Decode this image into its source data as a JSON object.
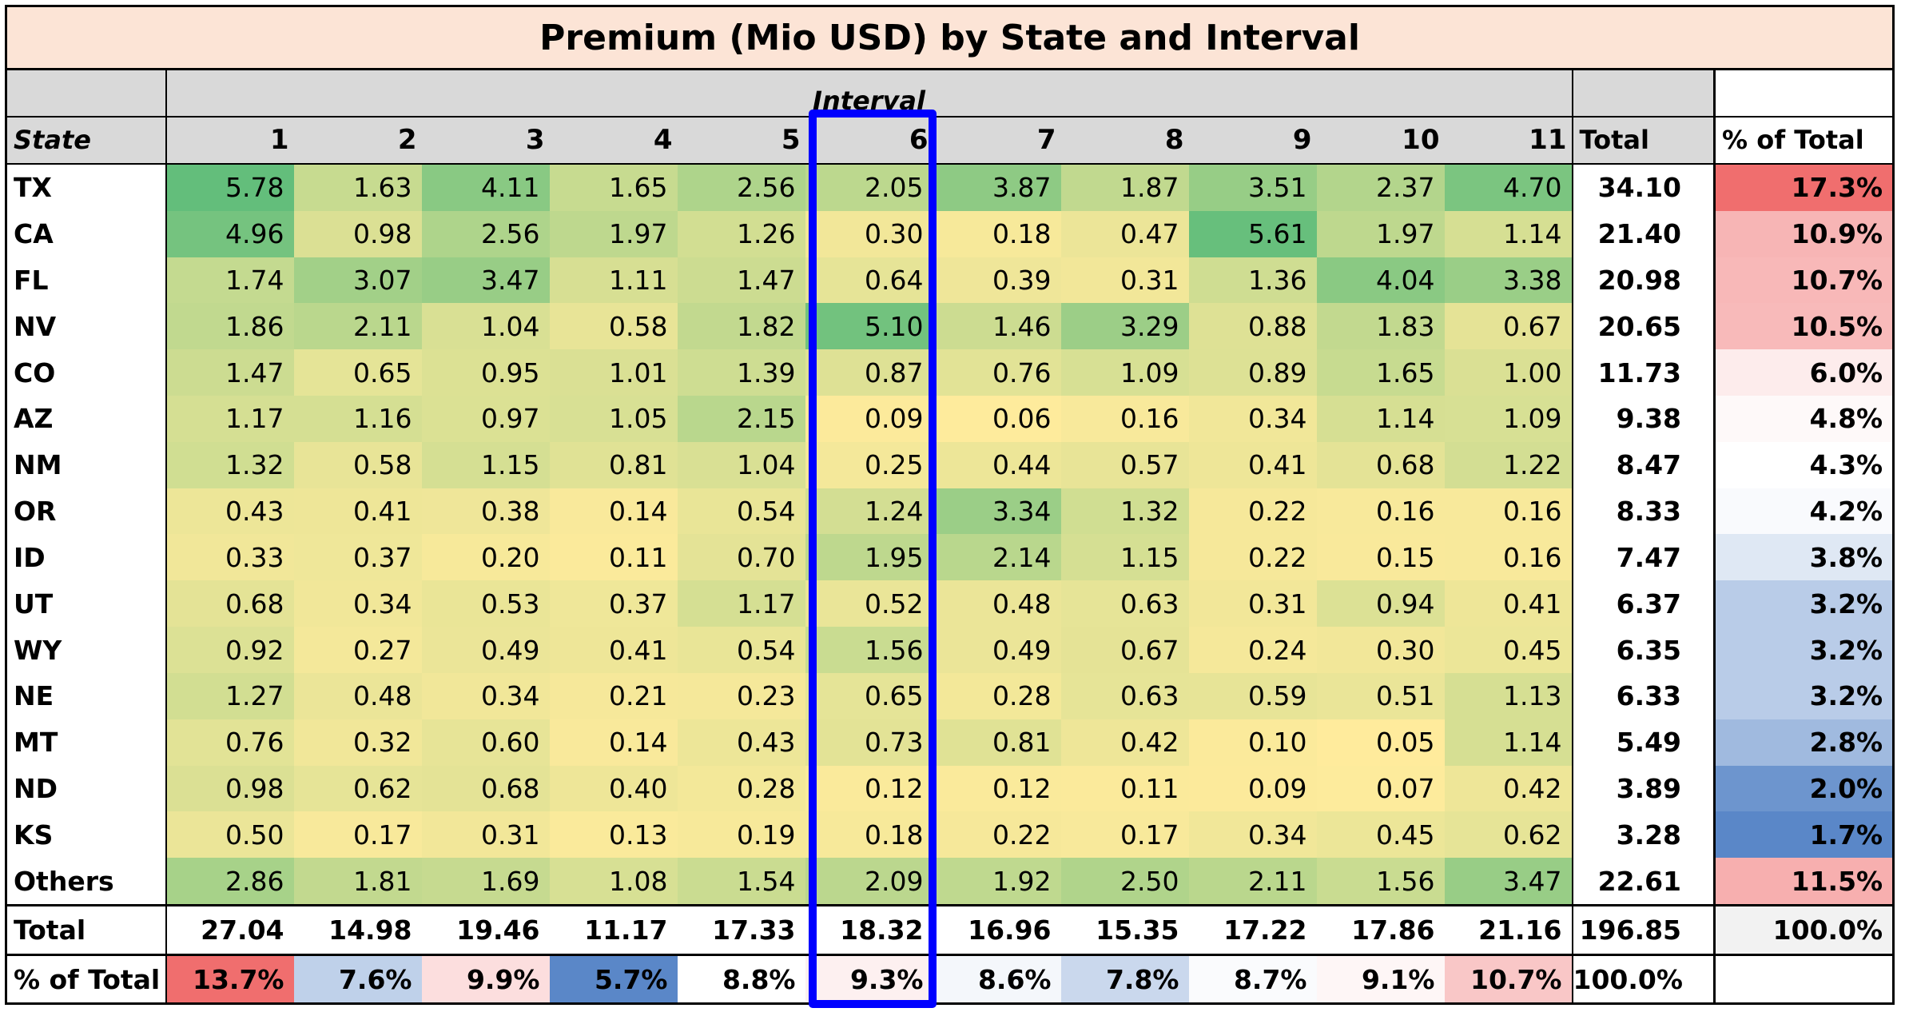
{
  "title": "Premium (Mio USD) by State and Interval",
  "interval_label": "Interval",
  "state_label": "State",
  "total_label": "Total",
  "pct_label": "% of Total",
  "highlight_color": "#0000ff",
  "chart_data": {
    "type": "table",
    "title": "Premium (Mio USD) by State and Interval",
    "columns": [
      "1",
      "2",
      "3",
      "4",
      "5",
      "6",
      "7",
      "8",
      "9",
      "10",
      "11"
    ],
    "highlighted_column": "6",
    "rows": [
      {
        "state": "TX",
        "values": [
          "5.78",
          "1.63",
          "4.11",
          "1.65",
          "2.56",
          "2.05",
          "3.87",
          "1.87",
          "3.51",
          "2.37",
          "4.70"
        ],
        "total": "34.10",
        "pct": "17.3%"
      },
      {
        "state": "CA",
        "values": [
          "4.96",
          "0.98",
          "2.56",
          "1.97",
          "1.26",
          "0.30",
          "0.18",
          "0.47",
          "5.61",
          "1.97",
          "1.14"
        ],
        "total": "21.40",
        "pct": "10.9%"
      },
      {
        "state": "FL",
        "values": [
          "1.74",
          "3.07",
          "3.47",
          "1.11",
          "1.47",
          "0.64",
          "0.39",
          "0.31",
          "1.36",
          "4.04",
          "3.38"
        ],
        "total": "20.98",
        "pct": "10.7%"
      },
      {
        "state": "NV",
        "values": [
          "1.86",
          "2.11",
          "1.04",
          "0.58",
          "1.82",
          "5.10",
          "1.46",
          "3.29",
          "0.88",
          "1.83",
          "0.67"
        ],
        "total": "20.65",
        "pct": "10.5%"
      },
      {
        "state": "CO",
        "values": [
          "1.47",
          "0.65",
          "0.95",
          "1.01",
          "1.39",
          "0.87",
          "0.76",
          "1.09",
          "0.89",
          "1.65",
          "1.00"
        ],
        "total": "11.73",
        "pct": "6.0%"
      },
      {
        "state": "AZ",
        "values": [
          "1.17",
          "1.16",
          "0.97",
          "1.05",
          "2.15",
          "0.09",
          "0.06",
          "0.16",
          "0.34",
          "1.14",
          "1.09"
        ],
        "total": "9.38",
        "pct": "4.8%"
      },
      {
        "state": "NM",
        "values": [
          "1.32",
          "0.58",
          "1.15",
          "0.81",
          "1.04",
          "0.25",
          "0.44",
          "0.57",
          "0.41",
          "0.68",
          "1.22"
        ],
        "total": "8.47",
        "pct": "4.3%"
      },
      {
        "state": "OR",
        "values": [
          "0.43",
          "0.41",
          "0.38",
          "0.14",
          "0.54",
          "1.24",
          "3.34",
          "1.32",
          "0.22",
          "0.16",
          "0.16"
        ],
        "total": "8.33",
        "pct": "4.2%"
      },
      {
        "state": "ID",
        "values": [
          "0.33",
          "0.37",
          "0.20",
          "0.11",
          "0.70",
          "1.95",
          "2.14",
          "1.15",
          "0.22",
          "0.15",
          "0.16"
        ],
        "total": "7.47",
        "pct": "3.8%"
      },
      {
        "state": "UT",
        "values": [
          "0.68",
          "0.34",
          "0.53",
          "0.37",
          "1.17",
          "0.52",
          "0.48",
          "0.63",
          "0.31",
          "0.94",
          "0.41"
        ],
        "total": "6.37",
        "pct": "3.2%"
      },
      {
        "state": "WY",
        "values": [
          "0.92",
          "0.27",
          "0.49",
          "0.41",
          "0.54",
          "1.56",
          "0.49",
          "0.67",
          "0.24",
          "0.30",
          "0.45"
        ],
        "total": "6.35",
        "pct": "3.2%"
      },
      {
        "state": "NE",
        "values": [
          "1.27",
          "0.48",
          "0.34",
          "0.21",
          "0.23",
          "0.65",
          "0.28",
          "0.63",
          "0.59",
          "0.51",
          "1.13"
        ],
        "total": "6.33",
        "pct": "3.2%"
      },
      {
        "state": "MT",
        "values": [
          "0.76",
          "0.32",
          "0.60",
          "0.14",
          "0.43",
          "0.73",
          "0.81",
          "0.42",
          "0.10",
          "0.05",
          "1.14"
        ],
        "total": "5.49",
        "pct": "2.8%"
      },
      {
        "state": "ND",
        "values": [
          "0.98",
          "0.62",
          "0.68",
          "0.40",
          "0.28",
          "0.12",
          "0.12",
          "0.11",
          "0.09",
          "0.07",
          "0.42"
        ],
        "total": "3.89",
        "pct": "2.0%"
      },
      {
        "state": "KS",
        "values": [
          "0.50",
          "0.17",
          "0.31",
          "0.13",
          "0.19",
          "0.18",
          "0.22",
          "0.17",
          "0.34",
          "0.45",
          "0.62"
        ],
        "total": "3.28",
        "pct": "1.7%"
      },
      {
        "state": "Others",
        "values": [
          "2.86",
          "1.81",
          "1.69",
          "1.08",
          "1.54",
          "2.09",
          "1.92",
          "2.50",
          "2.11",
          "1.56",
          "3.47"
        ],
        "total": "22.61",
        "pct": "11.5%"
      }
    ],
    "column_totals": [
      "27.04",
      "14.98",
      "19.46",
      "11.17",
      "17.33",
      "18.32",
      "16.96",
      "15.35",
      "17.22",
      "17.86",
      "21.16"
    ],
    "grand_total": "196.85",
    "grand_total_pct": "100.0%",
    "column_pcts": [
      "13.7%",
      "7.6%",
      "9.9%",
      "5.7%",
      "8.8%",
      "9.3%",
      "8.6%",
      "7.8%",
      "8.7%",
      "9.1%",
      "10.7%"
    ],
    "column_pct_total": "100.0%"
  }
}
